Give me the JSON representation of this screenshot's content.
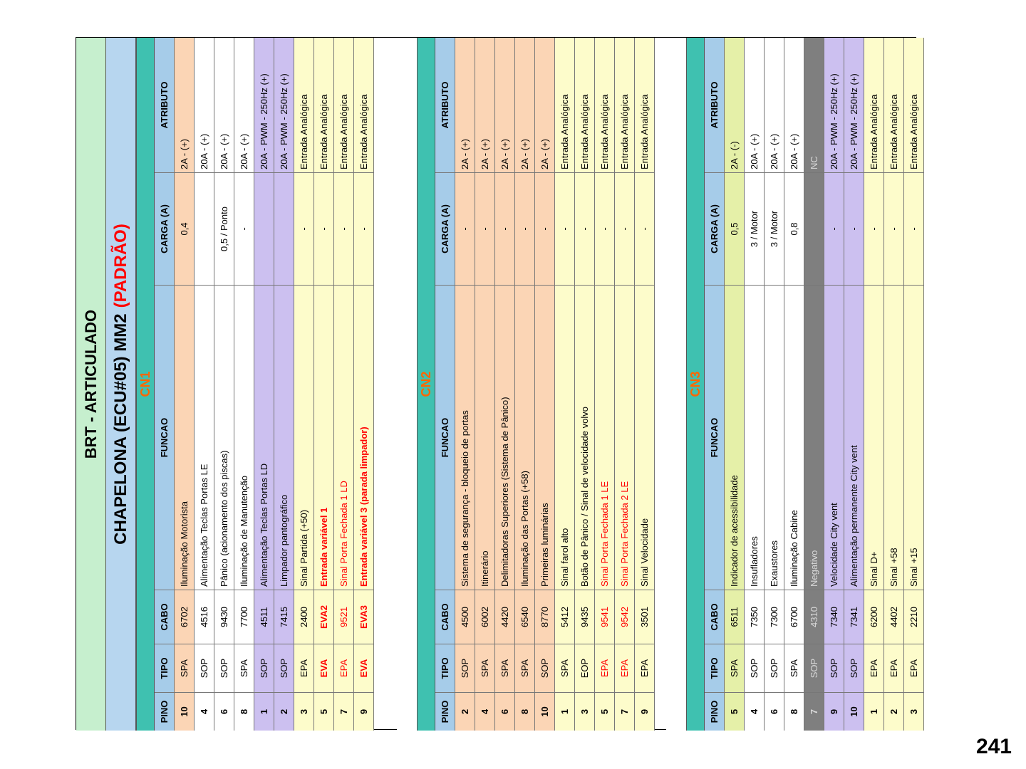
{
  "title": "BRT - ARTICULADO",
  "subtitle": {
    "main": "CHAPELONA (ECU#05) MM2",
    "highlight": "(PADRÃO)"
  },
  "columns": [
    "PINO",
    "TIPO",
    "CABO",
    "FUNCAO",
    "CARGA (A)",
    "ATRIBUTO"
  ],
  "connectors": [
    {
      "name": "CN1",
      "rows": [
        {
          "pino": "10",
          "tipo": "SPA",
          "cabo": "6702",
          "funcao": "Iluminação Motorista",
          "carga": "0,4",
          "atributo": "2A - (+)",
          "color": "orange"
        },
        {
          "pino": "4",
          "tipo": "SOP",
          "cabo": "4516",
          "funcao": "Alimentação Teclas Portas LE",
          "carga": "",
          "atributo": "20A - (+)",
          "color": "white"
        },
        {
          "pino": "6",
          "tipo": "SOP",
          "cabo": "9430",
          "funcao": "Pânico (acionamento dos piscas)",
          "carga": "0,5 / Ponto",
          "atributo": "20A - (+)",
          "color": "white"
        },
        {
          "pino": "8",
          "tipo": "SPA",
          "cabo": "7700",
          "funcao": "Iluminação de Manutenção",
          "carga": "-",
          "atributo": "20A - (+)",
          "color": "white"
        },
        {
          "pino": "1",
          "tipo": "SOP",
          "cabo": "4511",
          "funcao": "Alimentação Teclas Portas LD",
          "carga": "",
          "atributo": "20A - PWM - 250Hz (+)",
          "color": "purple"
        },
        {
          "pino": "2",
          "tipo": "SOP",
          "cabo": "7415",
          "funcao": "Limpador pantográfico",
          "carga": "",
          "atributo": "20A - PWM - 250Hz (+)",
          "color": "purple"
        },
        {
          "pino": "3",
          "tipo": "EPA",
          "cabo": "2400",
          "funcao": "Sinal Partida (+50)",
          "carga": "-",
          "atributo": "Entrada Analógica",
          "color": "yellow"
        },
        {
          "pino": "5",
          "tipo": "EVA",
          "cabo": "EVA2",
          "funcao": "Entrada variável 1",
          "carga": "-",
          "atributo": "Entrada Analógica",
          "color": "yellow",
          "style": "red-bold"
        },
        {
          "pino": "7",
          "tipo": "EPA",
          "cabo": "9521",
          "funcao": "Sinal Porta Fechada 1 LD",
          "carga": "-",
          "atributo": "Entrada Analógica",
          "color": "yellow",
          "style": "red-text"
        },
        {
          "pino": "9",
          "tipo": "EVA",
          "cabo": "EVA3",
          "funcao": "Entrada variável 3 (parada limpador)",
          "carga": "-",
          "atributo": "Entrada Analógica",
          "color": "yellow",
          "style": "red-bold"
        }
      ]
    },
    {
      "name": "CN2",
      "rows": [
        {
          "pino": "2",
          "tipo": "SOP",
          "cabo": "4500",
          "funcao": "Sistema de segurança - bloqueio de portas",
          "carga": "-",
          "atributo": "2A - (+)",
          "color": "orange"
        },
        {
          "pino": "4",
          "tipo": "SPA",
          "cabo": "6002",
          "funcao": "Itinerário",
          "carga": "-",
          "atributo": "2A - (+)",
          "color": "orange"
        },
        {
          "pino": "6",
          "tipo": "SPA",
          "cabo": "4420",
          "funcao": "Delimitadoras Superiores (Sistema de Pânico)",
          "carga": "-",
          "atributo": "2A - (+)",
          "color": "orange"
        },
        {
          "pino": "8",
          "tipo": "SPA",
          "cabo": "6540",
          "funcao": "Iluminação das Portas (+58)",
          "carga": "-",
          "atributo": "2A - (+)",
          "color": "orange"
        },
        {
          "pino": "10",
          "tipo": "SOP",
          "cabo": "8770",
          "funcao": "Primeiras luminárias",
          "carga": "-",
          "atributo": "2A - (+)",
          "color": "orange"
        },
        {
          "pino": "1",
          "tipo": "SPA",
          "cabo": "5412",
          "funcao": "Sinal farol alto",
          "carga": "-",
          "atributo": "Entrada Analógica",
          "color": "yellow"
        },
        {
          "pino": "3",
          "tipo": "EOP",
          "cabo": "9435",
          "funcao": "Botão de Pânico / Sinal de velocidade volvo",
          "carga": "-",
          "atributo": "Entrada Analógica",
          "color": "yellow"
        },
        {
          "pino": "5",
          "tipo": "EPA",
          "cabo": "9541",
          "funcao": "Sinal Porta Fechada 1 LE",
          "carga": "-",
          "atributo": "Entrada Analógica",
          "color": "yellow",
          "style": "red-text"
        },
        {
          "pino": "7",
          "tipo": "EPA",
          "cabo": "9542",
          "funcao": "Sinal Porta Fechada 2 LE",
          "carga": "-",
          "atributo": "Entrada Analógica",
          "color": "yellow",
          "style": "red-text"
        },
        {
          "pino": "9",
          "tipo": "EPA",
          "cabo": "3501",
          "funcao": "Sinal Velocidade",
          "carga": "-",
          "atributo": "Entrada Analógica",
          "color": "yellow"
        }
      ]
    },
    {
      "name": "CN3",
      "rows": [
        {
          "pino": "5",
          "tipo": "SPA",
          "cabo": "6511",
          "funcao": "Indicador de acessibilidade",
          "carga": "0,5",
          "atributo": "2A - (-)",
          "color": "green"
        },
        {
          "pino": "4",
          "tipo": "SOP",
          "cabo": "7350",
          "funcao": "Insufladores",
          "carga": "3 / Motor",
          "atributo": "20A - (+)",
          "color": "white"
        },
        {
          "pino": "6",
          "tipo": "SOP",
          "cabo": "7300",
          "funcao": "Exaustores",
          "carga": "3 / Motor",
          "atributo": "20A - (+)",
          "color": "white"
        },
        {
          "pino": "8",
          "tipo": "SPA",
          "cabo": "6700",
          "funcao": "Iluminação Cabine",
          "carga": "0,8",
          "atributo": "20A - (+)",
          "color": "white"
        },
        {
          "pino": "7",
          "tipo": "SOP",
          "cabo": "4310",
          "funcao": "Negativo",
          "carga": "",
          "atributo": "NC",
          "color": "gray"
        },
        {
          "pino": "9",
          "tipo": "SOP",
          "cabo": "7340",
          "funcao": "Velocidade City vent",
          "carga": "-",
          "atributo": "20A - PWM - 250Hz (+)",
          "color": "purple"
        },
        {
          "pino": "10",
          "tipo": "SOP",
          "cabo": "7341",
          "funcao": "Alimentação permanente City vent",
          "carga": "-",
          "atributo": "20A - PWM - 250Hz (+)",
          "color": "purple"
        },
        {
          "pino": "1",
          "tipo": "EPA",
          "cabo": "6200",
          "funcao": "Sinal D+",
          "carga": "-",
          "atributo": "Entrada Analógica",
          "color": "yellow"
        },
        {
          "pino": "2",
          "tipo": "EPA",
          "cabo": "4402",
          "funcao": "Sinal +58",
          "carga": "-",
          "atributo": "Entrada Analógica",
          "color": "yellow"
        },
        {
          "pino": "3",
          "tipo": "EPA",
          "cabo": "2210",
          "funcao": "Sinal +15",
          "carga": "-",
          "atributo": "Entrada Analógica",
          "color": "yellow"
        }
      ]
    }
  ],
  "page_number": "241"
}
